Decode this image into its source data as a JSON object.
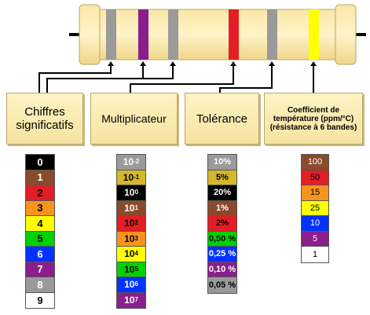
{
  "headers": {
    "digits": "Chiffres significatifs",
    "multiplier": "Multiplicateur",
    "tolerance": "Tolérance",
    "tempco": "Coefficient de température (ppm/°C) (résistance à 6 bandes)"
  },
  "digits": [
    {
      "label": "0",
      "bg": "#000000",
      "fg": "#ffffff"
    },
    {
      "label": "1",
      "bg": "#8b4a2b",
      "fg": "#ffffff"
    },
    {
      "label": "2",
      "bg": "#e31e24",
      "fg": "#000000"
    },
    {
      "label": "3",
      "bg": "#f7941d",
      "fg": "#000000"
    },
    {
      "label": "4",
      "bg": "#ffff00",
      "fg": "#000000"
    },
    {
      "label": "5",
      "bg": "#00d100",
      "fg": "#000000"
    },
    {
      "label": "6",
      "bg": "#0033ff",
      "fg": "#ffffff"
    },
    {
      "label": "7",
      "bg": "#8a1e8c",
      "fg": "#ffffff"
    },
    {
      "label": "8",
      "bg": "#9a9a9a",
      "fg": "#ffffff"
    },
    {
      "label": "9",
      "bg": "#ffffff",
      "fg": "#000000"
    }
  ],
  "multiplier": [
    {
      "base": "10",
      "exp": "-2",
      "bg": "#9a9a9a",
      "fg": "#ffffff"
    },
    {
      "base": "10",
      "exp": "-1",
      "bg": "#d4b82a",
      "fg": "#000000"
    },
    {
      "base": "10",
      "exp": "0",
      "bg": "#000000",
      "fg": "#ffffff"
    },
    {
      "base": "10",
      "exp": "1",
      "bg": "#8b4a2b",
      "fg": "#ffffff"
    },
    {
      "base": "10",
      "exp": "2",
      "bg": "#e31e24",
      "fg": "#000000"
    },
    {
      "base": "10",
      "exp": "3",
      "bg": "#f7941d",
      "fg": "#000000"
    },
    {
      "base": "10",
      "exp": "4",
      "bg": "#ffff00",
      "fg": "#000000"
    },
    {
      "base": "10",
      "exp": "5",
      "bg": "#00d100",
      "fg": "#000000"
    },
    {
      "base": "10",
      "exp": "6",
      "bg": "#0033ff",
      "fg": "#ffffff"
    },
    {
      "base": "10",
      "exp": "7",
      "bg": "#8a1e8c",
      "fg": "#ffffff"
    }
  ],
  "tolerance": [
    {
      "label": "10%",
      "bg": "#9a9a9a",
      "fg": "#ffffff"
    },
    {
      "label": "5%",
      "bg": "#d4b82a",
      "fg": "#000000"
    },
    {
      "label": "20%",
      "bg": "#000000",
      "fg": "#ffffff"
    },
    {
      "label": "1%",
      "bg": "#8b4a2b",
      "fg": "#ffffff"
    },
    {
      "label": "2%",
      "bg": "#e31e24",
      "fg": "#000000"
    },
    {
      "label": "0,50 %",
      "bg": "#00d100",
      "fg": "#000000"
    },
    {
      "label": "0,25 %",
      "bg": "#0033ff",
      "fg": "#ffffff"
    },
    {
      "label": "0,10 %",
      "bg": "#8a1e8c",
      "fg": "#ffffff"
    },
    {
      "label": "0,05 %",
      "bg": "#9a9a9a",
      "fg": "#000000"
    }
  ],
  "tempco": [
    {
      "label": "100",
      "bg": "#8b4a2b",
      "fg": "#ffffff"
    },
    {
      "label": "50",
      "bg": "#e31e24",
      "fg": "#000000"
    },
    {
      "label": "15",
      "bg": "#f7941d",
      "fg": "#000000"
    },
    {
      "label": "25",
      "bg": "#ffff00",
      "fg": "#000000"
    },
    {
      "label": "10",
      "bg": "#0033ff",
      "fg": "#ffffff"
    },
    {
      "label": "5",
      "bg": "#8a1e8c",
      "fg": "#ffffff"
    },
    {
      "label": "1",
      "bg": "#ffffff",
      "fg": "#000000"
    }
  ],
  "resistor": {
    "body_color": "#fbe7a6",
    "bands": [
      "#9a9a9a",
      "#8a1e8c",
      "#9a9a9a",
      "#e31e24",
      "#9a9a9a",
      "#ffff00"
    ]
  }
}
